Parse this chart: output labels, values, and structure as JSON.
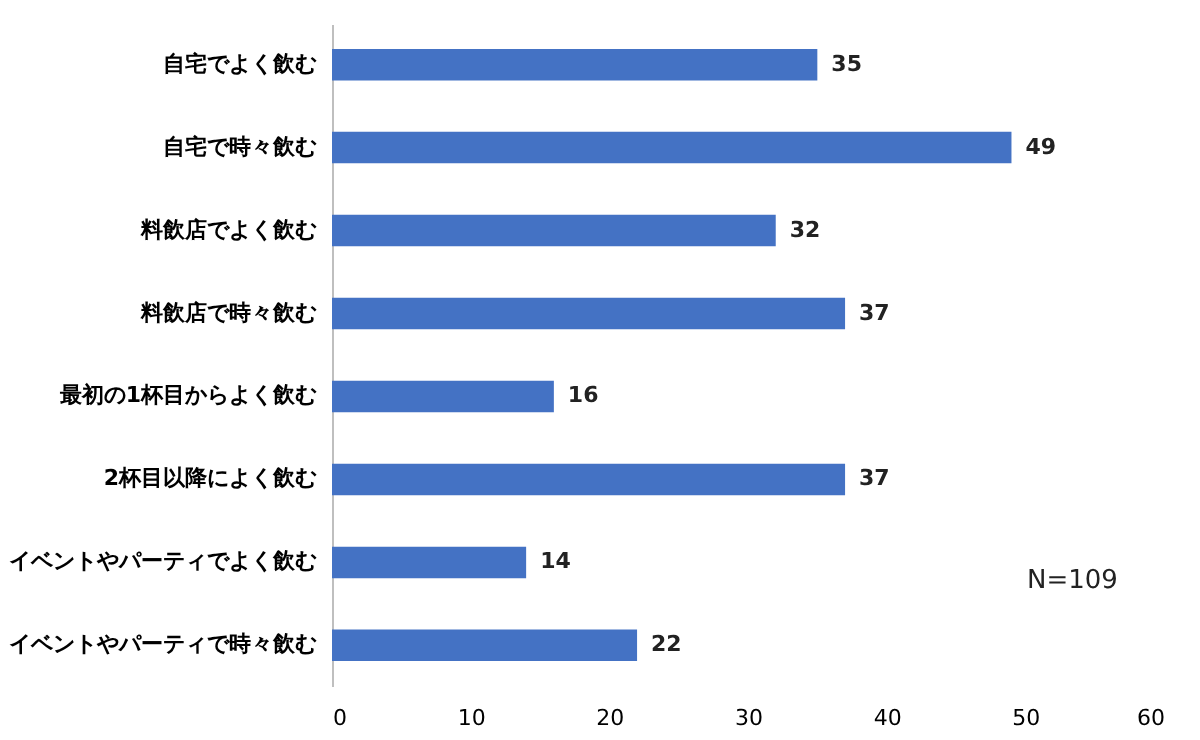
{
  "chart_data": {
    "type": "bar",
    "orientation": "horizontal",
    "categories": [
      "自宅でよく飲む",
      "自宅で時々飲む",
      "料飲店でよく飲む",
      "料飲店で時々飲む",
      "最初の1杯目からよく飲む",
      "2杯目以降によく飲む",
      "イベントやパーティでよく飲む",
      "イベントやパーティで時々飲む"
    ],
    "values": [
      35,
      49,
      32,
      37,
      16,
      37,
      14,
      22
    ],
    "color": "#4472c4",
    "xlim": [
      0,
      60
    ],
    "xticks": [
      0,
      10,
      20,
      30,
      40,
      50,
      60
    ],
    "grid": false,
    "data_labels": true,
    "annotations": [
      "N=109"
    ]
  }
}
